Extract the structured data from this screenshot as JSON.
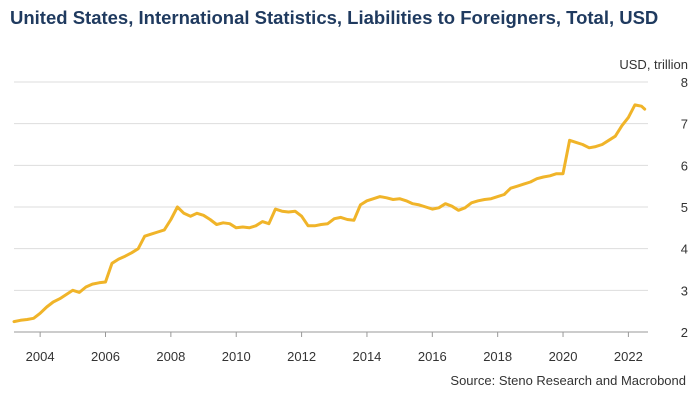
{
  "title": "United States, International Statistics, Liabilities to Foreigners, Total, USD",
  "unit_label": "USD, trillion",
  "source": "Source: Steno Research and Macrobond",
  "colors": {
    "series": "#f0b429",
    "grid": "#dddddd",
    "axis": "#999999",
    "title": "#1f3a5f"
  },
  "chart_data": {
    "type": "line",
    "title": "United States, International Statistics, Liabilities to Foreigners, Total, USD",
    "ylabel": "USD, trillion",
    "xlabel": "",
    "xlim": [
      2003.2,
      2022.6
    ],
    "ylim": [
      2,
      8
    ],
    "x_ticks": [
      2004,
      2006,
      2008,
      2010,
      2012,
      2014,
      2016,
      2018,
      2020,
      2022
    ],
    "y_ticks": [
      2,
      3,
      4,
      5,
      6,
      7,
      8
    ],
    "grid": "horizontal",
    "series": [
      {
        "x": [
          2003.2,
          2003.4,
          2003.6,
          2003.8,
          2004.0,
          2004.2,
          2004.4,
          2004.6,
          2004.8,
          2005.0,
          2005.2,
          2005.4,
          2005.6,
          2005.8,
          2006.0,
          2006.2,
          2006.4,
          2006.6,
          2006.8,
          2007.0,
          2007.2,
          2007.4,
          2007.6,
          2007.8,
          2008.0,
          2008.2,
          2008.4,
          2008.6,
          2008.8,
          2009.0,
          2009.2,
          2009.4,
          2009.6,
          2009.8,
          2010.0,
          2010.2,
          2010.4,
          2010.6,
          2010.8,
          2011.0,
          2011.2,
          2011.4,
          2011.6,
          2011.8,
          2012.0,
          2012.2,
          2012.4,
          2012.6,
          2012.8,
          2013.0,
          2013.2,
          2013.4,
          2013.6,
          2013.8,
          2014.0,
          2014.2,
          2014.4,
          2014.6,
          2014.8,
          2015.0,
          2015.2,
          2015.4,
          2015.6,
          2015.8,
          2016.0,
          2016.2,
          2016.4,
          2016.6,
          2016.8,
          2017.0,
          2017.2,
          2017.4,
          2017.6,
          2017.8,
          2018.0,
          2018.2,
          2018.4,
          2018.6,
          2018.8,
          2019.0,
          2019.2,
          2019.4,
          2019.6,
          2019.8,
          2020.0,
          2020.2,
          2020.4,
          2020.6,
          2020.8,
          2021.0,
          2021.2,
          2021.4,
          2021.6,
          2021.8,
          2022.0,
          2022.2,
          2022.4,
          2022.5
        ],
        "values": [
          2.25,
          2.28,
          2.3,
          2.33,
          2.45,
          2.6,
          2.72,
          2.8,
          2.9,
          3.0,
          2.95,
          3.08,
          3.15,
          3.18,
          3.2,
          3.65,
          3.75,
          3.82,
          3.9,
          4.0,
          4.3,
          4.35,
          4.4,
          4.45,
          4.7,
          5.0,
          4.85,
          4.78,
          4.85,
          4.8,
          4.7,
          4.58,
          4.62,
          4.6,
          4.5,
          4.52,
          4.5,
          4.55,
          4.65,
          4.6,
          4.95,
          4.9,
          4.88,
          4.9,
          4.78,
          4.55,
          4.55,
          4.58,
          4.6,
          4.72,
          4.75,
          4.7,
          4.68,
          5.05,
          5.15,
          5.2,
          5.25,
          5.22,
          5.18,
          5.2,
          5.15,
          5.08,
          5.05,
          5.0,
          4.95,
          4.98,
          5.08,
          5.02,
          4.92,
          4.98,
          5.1,
          5.15,
          5.18,
          5.2,
          5.25,
          5.3,
          5.45,
          5.5,
          5.55,
          5.6,
          5.68,
          5.72,
          5.75,
          5.8,
          5.8,
          6.6,
          6.55,
          6.5,
          6.42,
          6.45,
          6.5,
          6.6,
          6.7,
          6.95,
          7.15,
          7.45,
          7.42,
          7.35
        ]
      }
    ]
  }
}
